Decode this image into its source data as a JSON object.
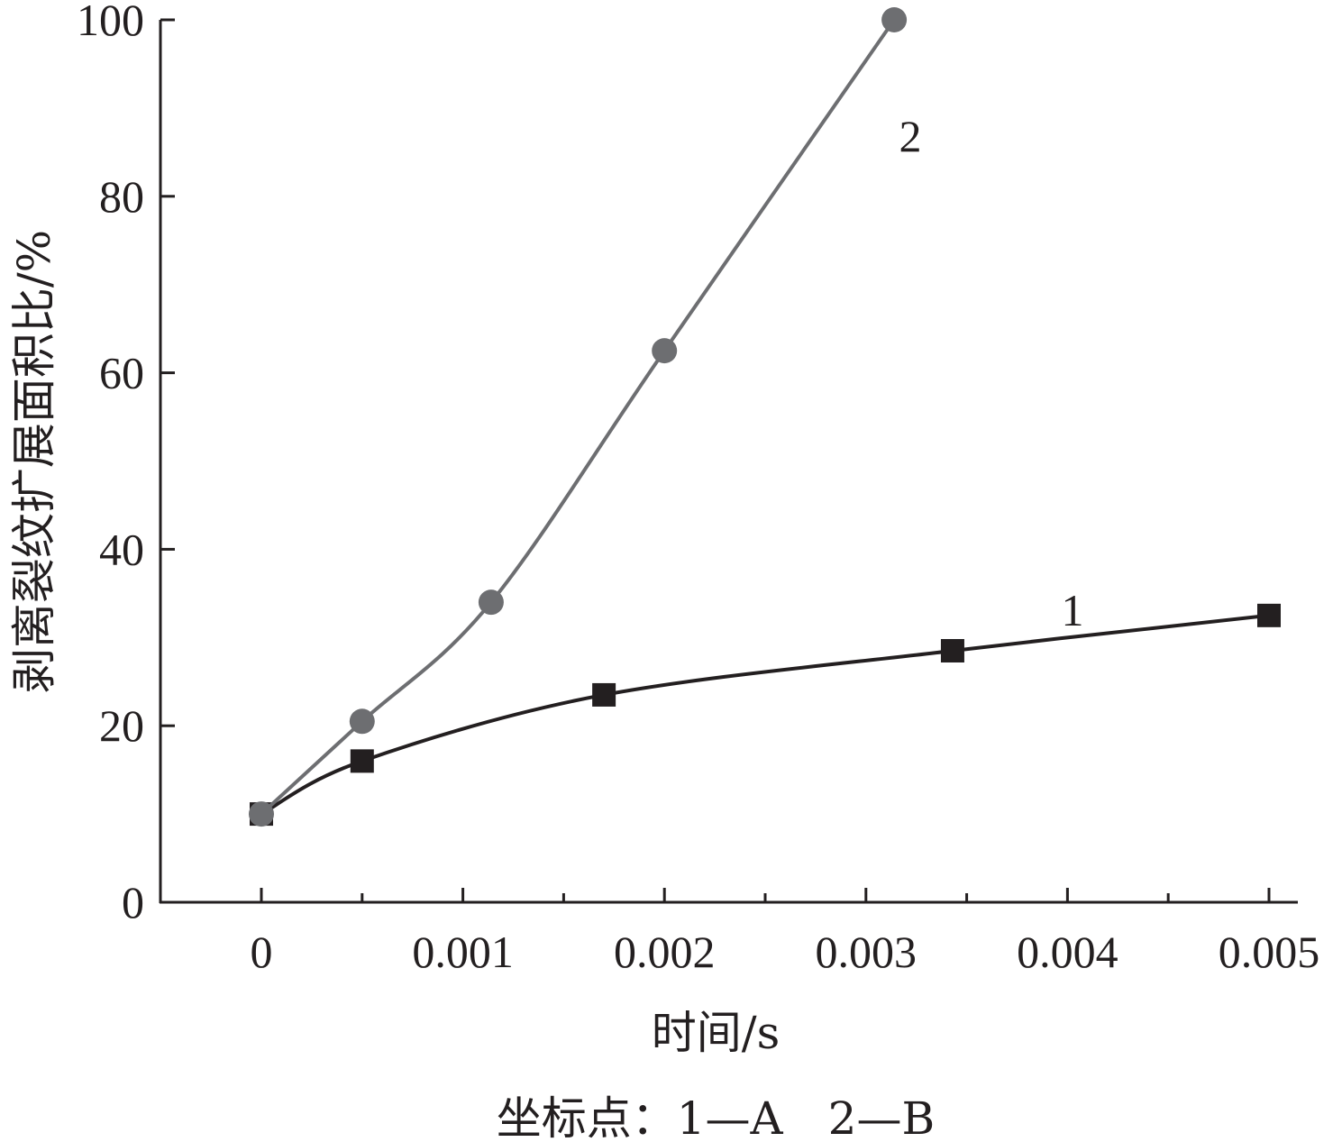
{
  "chart_data": {
    "type": "line",
    "xlabel": "时间/s",
    "ylabel": "剥离裂纹扩展面积比/%",
    "xlim": [
      -0.0005,
      0.005
    ],
    "ylim": [
      0,
      100
    ],
    "x_ticks": [
      0,
      0.001,
      0.002,
      0.003,
      0.004,
      0.005
    ],
    "x_tick_labels": [
      "0",
      "0.001",
      "0.002",
      "0.003",
      "0.004",
      "0.005"
    ],
    "y_ticks": [
      0,
      20,
      40,
      60,
      80,
      100
    ],
    "y_tick_labels": [
      "0",
      "20",
      "40",
      "60",
      "80",
      "100"
    ],
    "grid": false,
    "series": [
      {
        "name": "1",
        "marker": "square",
        "color": "#231f20",
        "points": [
          {
            "x": 0,
            "y": 10
          },
          {
            "x": 0.0005,
            "y": 16
          },
          {
            "x": 0.0017,
            "y": 23.5
          },
          {
            "x": 0.00343,
            "y": 28.5
          },
          {
            "x": 0.005,
            "y": 32.5
          }
        ]
      },
      {
        "name": "2",
        "marker": "circle",
        "color": "#6d6e71",
        "points": [
          {
            "x": 0,
            "y": 10
          },
          {
            "x": 0.0005,
            "y": 20.5
          },
          {
            "x": 0.00114,
            "y": 34
          },
          {
            "x": 0.002,
            "y": 62.5
          },
          {
            "x": 0.00314,
            "y": 100
          }
        ]
      }
    ],
    "caption": "坐标点：1—A　2—B"
  }
}
